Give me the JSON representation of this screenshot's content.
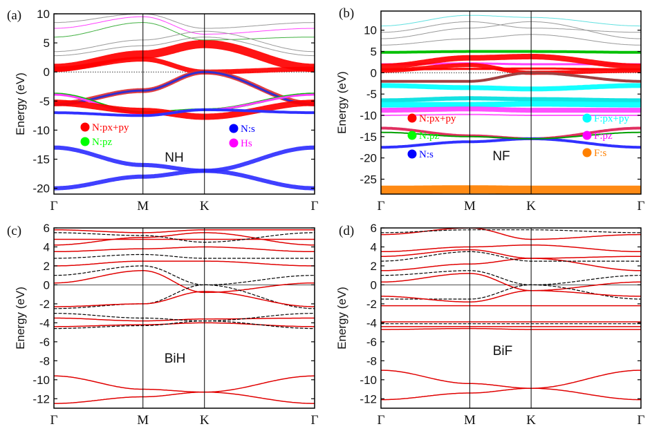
{
  "chart_data": [
    {
      "type": "line",
      "panel_label": "(a)",
      "annotation": "NH",
      "ylabel": "Energy (eV)",
      "ylim": [
        -21,
        10
      ],
      "yticks": [
        10,
        5,
        0,
        -5,
        -10,
        -15,
        -20
      ],
      "xticks": [
        "Γ",
        "M",
        "K",
        "Γ"
      ],
      "legend": [
        {
          "label": "N:px+py",
          "color": "#ff0000"
        },
        {
          "label": "N:pz",
          "color": "#00ff00"
        },
        {
          "label": "N:s",
          "color": "#0000ff"
        },
        {
          "label": "Hs",
          "color": "#ff00ff"
        }
      ],
      "bands": [
        {
          "values": [
            0.7,
            3.0,
            4.8,
            0.7
          ],
          "color": "#ff0000",
          "width": 12
        },
        {
          "values": [
            0.5,
            2.2,
            0.0,
            0.5
          ],
          "color": "#ff0000",
          "width": 7
        },
        {
          "values": [
            -5.5,
            -3.2,
            0.0,
            -5.5
          ],
          "color": "#e03030",
          "width": 7
        },
        {
          "values": [
            -5.6,
            -3.2,
            0.0,
            -5.6
          ],
          "color": "#3030d0",
          "width": 3
        },
        {
          "values": [
            -3.8,
            -7.0,
            -6.5,
            -3.8
          ],
          "color": "#00c000",
          "width": 4
        },
        {
          "values": [
            -3.9,
            -7.2,
            -6.5,
            -3.9
          ],
          "color": "#ff40ff",
          "width": 3
        },
        {
          "values": [
            -5.3,
            -6.7,
            -7.7,
            -5.3
          ],
          "color": "#ff0000",
          "width": 9
        },
        {
          "values": [
            -7.0,
            -7.5,
            -6.5,
            -7.0
          ],
          "color": "#3030ff",
          "width": 4
        },
        {
          "values": [
            -13.0,
            -16.0,
            -17.0,
            -13.0
          ],
          "color": "#3030ff",
          "width": 6
        },
        {
          "values": [
            -20.0,
            -18.0,
            -17.0,
            -20.0
          ],
          "color": "#3030ff",
          "width": 6
        },
        {
          "values": [
            6.0,
            8.5,
            5.5,
            6.0
          ],
          "color": "#40b040",
          "width": 1
        },
        {
          "values": [
            7.5,
            9.5,
            6.5,
            7.5
          ],
          "color": "#ff40ff",
          "width": 1
        },
        {
          "values": [
            8.5,
            10.0,
            7.5,
            8.5
          ],
          "color": "#999999",
          "width": 1
        },
        {
          "values": [
            2.8,
            4.5,
            6.0,
            2.8
          ],
          "color": "#999999",
          "width": 1
        },
        {
          "values": [
            3.5,
            5.5,
            7.0,
            3.5
          ],
          "color": "#999999",
          "width": 1
        }
      ]
    },
    {
      "type": "line",
      "panel_label": "(b)",
      "annotation": "NF",
      "ylabel": "Energy (eV)",
      "ylim": [
        -28.5,
        14.5
      ],
      "yticks": [
        10,
        5,
        0,
        -5,
        -10,
        -15,
        -20,
        -25
      ],
      "xticks": [
        "Γ",
        "M",
        "K",
        "Γ"
      ],
      "legend": [
        {
          "label": "N:px+py",
          "color": "#ff0000"
        },
        {
          "label": "N:pz",
          "color": "#00ff00"
        },
        {
          "label": "N:s",
          "color": "#0000ff"
        },
        {
          "label": "F:px+py",
          "color": "#00ffff"
        },
        {
          "label": "F:pz",
          "color": "#ff00ff"
        },
        {
          "label": "F:s",
          "color": "#ff8000"
        }
      ],
      "bands": [
        {
          "values": [
            -27.5,
            -27.4,
            -27.5,
            -27.5
          ],
          "color": "#ff8000",
          "width": 12
        },
        {
          "values": [
            -3.0,
            -3.5,
            -3.8,
            -3.0
          ],
          "color": "#00ffff",
          "width": 7
        },
        {
          "values": [
            -6.5,
            -6.0,
            -6.2,
            -6.5
          ],
          "color": "#00e0e0",
          "width": 6
        },
        {
          "values": [
            -7.5,
            -7.5,
            -7.3,
            -7.5
          ],
          "color": "#00ffff",
          "width": 8
        },
        {
          "values": [
            -8.8,
            -8.5,
            -8.8,
            -8.8
          ],
          "color": "#ff40ff",
          "width": 7
        },
        {
          "values": [
            -10.0,
            -9.8,
            -10.0,
            -10.0
          ],
          "color": "#ff60ff",
          "width": 2
        },
        {
          "values": [
            2.0,
            2.2,
            2.0,
            2.0
          ],
          "color": "#ff40ff",
          "width": 3
        },
        {
          "values": [
            4.8,
            5.0,
            5.0,
            4.8
          ],
          "color": "#00c000",
          "width": 4
        },
        {
          "values": [
            1.5,
            3.5,
            3.8,
            1.5
          ],
          "color": "#ff0000",
          "width": 8
        },
        {
          "values": [
            0.5,
            1.8,
            0.0,
            0.5
          ],
          "color": "#ff0000",
          "width": 6
        },
        {
          "values": [
            0.8,
            0.9,
            1.0,
            0.8
          ],
          "color": "#ff0000",
          "width": 3
        },
        {
          "values": [
            -2.0,
            -2.0,
            0.0,
            -2.0
          ],
          "color": "#a04040",
          "width": 4
        },
        {
          "values": [
            -13.0,
            -14.8,
            -15.5,
            -13.0
          ],
          "color": "#e03060",
          "width": 4
        },
        {
          "values": [
            -17.5,
            -16.2,
            -15.5,
            -17.5
          ],
          "color": "#3030ff",
          "width": 4
        },
        {
          "values": [
            -14.0,
            -15.0,
            -15.5,
            -14.0
          ],
          "color": "#00a000",
          "width": 2
        },
        {
          "values": [
            8.0,
            10.5,
            12.0,
            8.0
          ],
          "color": "#999999",
          "width": 1
        },
        {
          "values": [
            9.5,
            12.0,
            10.5,
            9.5
          ],
          "color": "#999999",
          "width": 1
        },
        {
          "values": [
            11.0,
            13.5,
            13.0,
            11.0
          ],
          "color": "#60e0e0",
          "width": 1
        },
        {
          "values": [
            6.5,
            8.0,
            9.0,
            6.5
          ],
          "color": "#999999",
          "width": 1
        }
      ]
    },
    {
      "type": "line",
      "panel_label": "(c)",
      "annotation": "BiH",
      "ylabel": "Energy (eV)",
      "ylim": [
        -13,
        6
      ],
      "yticks": [
        6,
        4,
        2,
        0,
        -2,
        -4,
        -6,
        -8,
        -10,
        -12
      ],
      "xticks": [
        "Γ",
        "M",
        "K",
        "Γ"
      ],
      "bands": [
        {
          "values": [
            0.2,
            1.5,
            -0.8,
            0.2
          ],
          "color": "#e00000",
          "width": 1.5
        },
        {
          "values": [
            1.0,
            2.0,
            0.0,
            1.0
          ],
          "color": "#000000",
          "width": 1.2,
          "dash": true
        },
        {
          "values": [
            -2.5,
            -2.0,
            0.0,
            -2.5
          ],
          "color": "#000000",
          "width": 1.2,
          "dash": true
        },
        {
          "values": [
            -2.3,
            -2.0,
            -0.7,
            -2.3
          ],
          "color": "#e00000",
          "width": 1.5
        },
        {
          "values": [
            -3.5,
            -3.8,
            -3.6,
            -3.5
          ],
          "color": "#e00000",
          "width": 1.5
        },
        {
          "values": [
            -3.0,
            -3.5,
            -3.8,
            -3.0
          ],
          "color": "#000000",
          "width": 1.2,
          "dash": true
        },
        {
          "values": [
            -4.4,
            -4.2,
            -4.0,
            -4.4
          ],
          "color": "#e00000",
          "width": 1.5
        },
        {
          "values": [
            -4.6,
            -4.3,
            -3.8,
            -4.6
          ],
          "color": "#000000",
          "width": 1.2,
          "dash": true
        },
        {
          "values": [
            -9.6,
            -11.0,
            -11.3,
            -9.6
          ],
          "color": "#e00000",
          "width": 1.5
        },
        {
          "values": [
            -12.5,
            -11.8,
            -11.3,
            -12.5
          ],
          "color": "#e00000",
          "width": 1.5
        },
        {
          "values": [
            2.0,
            2.5,
            2.5,
            2.0
          ],
          "color": "#e00000",
          "width": 1.5
        },
        {
          "values": [
            2.8,
            3.2,
            2.8,
            2.8
          ],
          "color": "#000000",
          "width": 1.2,
          "dash": true
        },
        {
          "values": [
            3.5,
            3.8,
            4.0,
            3.5
          ],
          "color": "#e00000",
          "width": 1.5
        },
        {
          "values": [
            4.2,
            5.0,
            5.5,
            4.2
          ],
          "color": "#e00000",
          "width": 1.5
        },
        {
          "values": [
            4.8,
            4.8,
            4.8,
            4.8
          ],
          "color": "#e00000",
          "width": 1.5
        },
        {
          "values": [
            5.8,
            5.5,
            5.8,
            5.8
          ],
          "color": "#e00000",
          "width": 1.5
        },
        {
          "values": [
            5.5,
            5.2,
            4.5,
            5.5
          ],
          "color": "#000000",
          "width": 1.2,
          "dash": true
        }
      ]
    },
    {
      "type": "line",
      "panel_label": "(d)",
      "annotation": "BiF",
      "ylabel": "Energy (eV)",
      "ylim": [
        -13,
        6
      ],
      "yticks": [
        6,
        4,
        2,
        0,
        -2,
        -4,
        -6,
        -8,
        -10,
        -12
      ],
      "xticks": [
        "Γ",
        "M",
        "K",
        "Γ"
      ],
      "bands": [
        {
          "values": [
            0.3,
            1.2,
            -0.6,
            0.3
          ],
          "color": "#e00000",
          "width": 1.5
        },
        {
          "values": [
            1.0,
            1.5,
            0.0,
            1.0
          ],
          "color": "#000000",
          "width": 1.2,
          "dash": true
        },
        {
          "values": [
            -1.5,
            -1.5,
            0.0,
            -1.5
          ],
          "color": "#000000",
          "width": 1.2,
          "dash": true
        },
        {
          "values": [
            -1.2,
            -1.8,
            -0.6,
            -1.2
          ],
          "color": "#e00000",
          "width": 1.5
        },
        {
          "values": [
            -2.2,
            -2.2,
            -2.2,
            -2.2
          ],
          "color": "#e00000",
          "width": 1.5
        },
        {
          "values": [
            -3.9,
            -3.9,
            -3.9,
            -3.9
          ],
          "color": "#e00000",
          "width": 1.5
        },
        {
          "values": [
            -4.1,
            -4.1,
            -4.1,
            -4.1
          ],
          "color": "#000000",
          "width": 1.2,
          "dash": true
        },
        {
          "values": [
            -4.4,
            -4.4,
            -4.4,
            -4.4
          ],
          "color": "#e00000",
          "width": 1.5
        },
        {
          "values": [
            -4.7,
            -4.6,
            -4.7,
            -4.7
          ],
          "color": "#e00000",
          "width": 1.5
        },
        {
          "values": [
            -9.0,
            -10.4,
            -10.9,
            -9.0
          ],
          "color": "#e00000",
          "width": 1.5
        },
        {
          "values": [
            -12.1,
            -11.4,
            -10.9,
            -12.1
          ],
          "color": "#e00000",
          "width": 1.5
        },
        {
          "values": [
            1.5,
            2.2,
            2.8,
            1.5
          ],
          "color": "#e00000",
          "width": 1.5
        },
        {
          "values": [
            2.5,
            3.5,
            2.5,
            2.5
          ],
          "color": "#000000",
          "width": 1.2,
          "dash": true
        },
        {
          "values": [
            3.0,
            3.7,
            2.8,
            3.0
          ],
          "color": "#e00000",
          "width": 1.5
        },
        {
          "values": [
            3.5,
            4.0,
            4.2,
            3.5
          ],
          "color": "#e00000",
          "width": 1.5
        },
        {
          "values": [
            5.3,
            6.0,
            4.8,
            5.3
          ],
          "color": "#e00000",
          "width": 1.5
        },
        {
          "values": [
            5.5,
            5.8,
            5.8,
            5.5
          ],
          "color": "#000000",
          "width": 1.2,
          "dash": true
        }
      ]
    }
  ]
}
